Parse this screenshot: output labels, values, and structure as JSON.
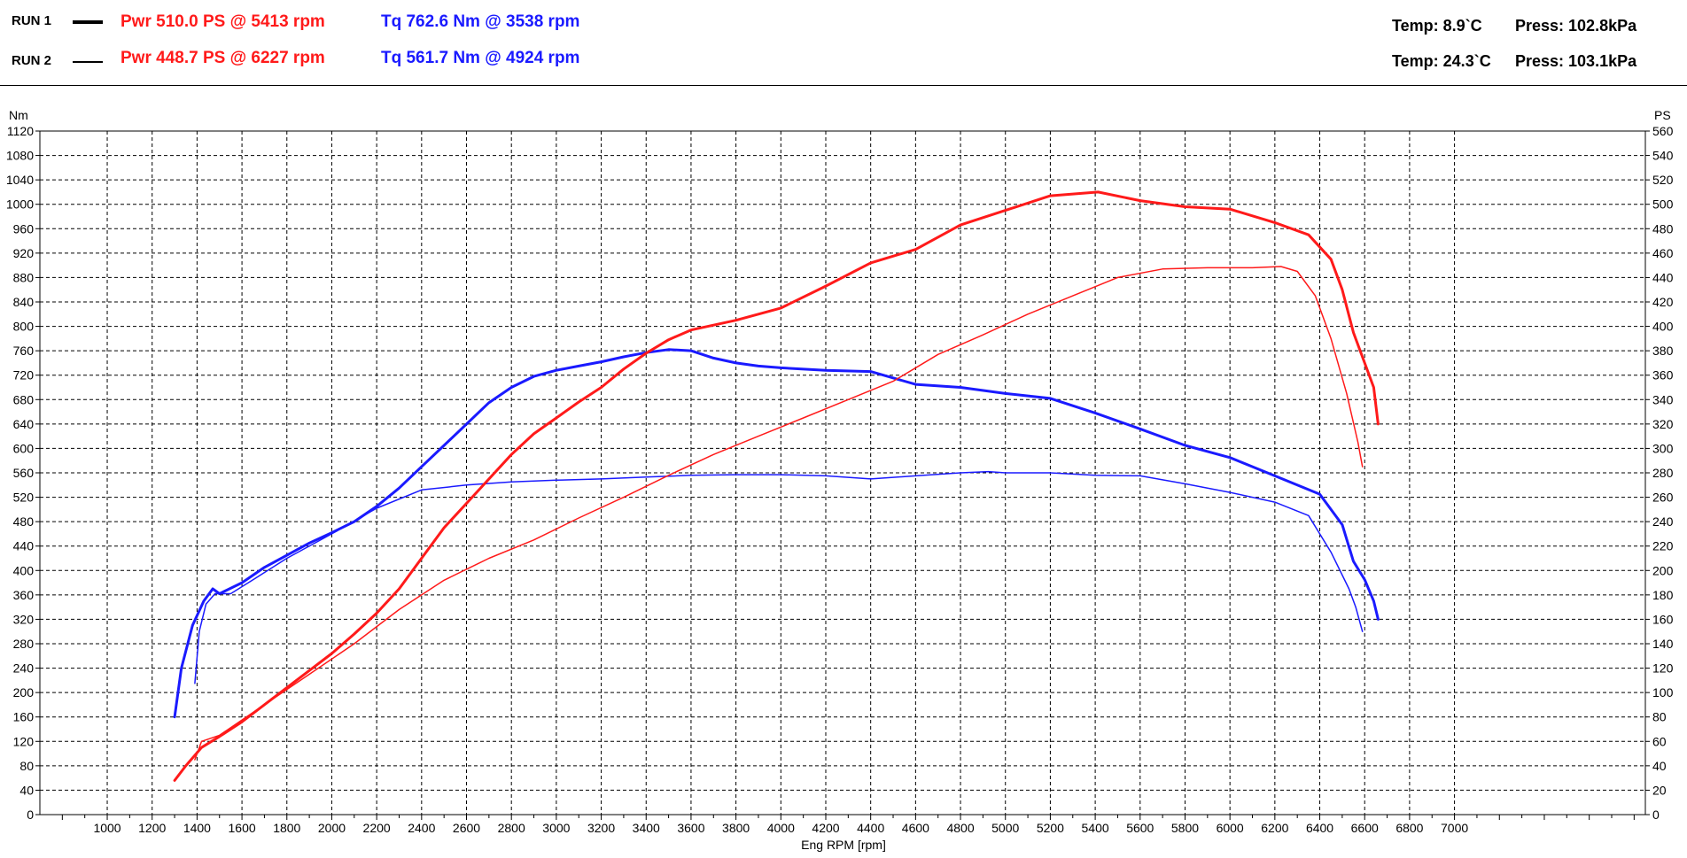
{
  "header": {
    "runs": [
      {
        "label": "RUN 1",
        "pwr": "Pwr  510.0 PS @ 5413 rpm",
        "tq": "Tq 762.6 Nm @ 3538 rpm",
        "temp": "Temp: 8.9`C",
        "press": "Press: 102.8kPa"
      },
      {
        "label": "RUN 2",
        "pwr": "Pwr  448.7 PS @ 6227 rpm",
        "tq": "Tq 561.7 Nm @ 4924 rpm",
        "temp": "Temp: 24.3`C",
        "press": "Press: 103.1kPa"
      }
    ]
  },
  "colors": {
    "power": "#ff1a1a",
    "torque": "#1a1aff",
    "grid": "#000000"
  },
  "chart_data": {
    "type": "line",
    "xlabel": "Eng RPM [rpm]",
    "ylabel_left": "Nm",
    "ylabel_right": "PS",
    "xlim": [
      700,
      7850
    ],
    "ylim_left": [
      0,
      1120
    ],
    "ylim_right": [
      0,
      560
    ],
    "x_ticks": [
      1000,
      1200,
      1400,
      1600,
      1800,
      2000,
      2200,
      2400,
      2600,
      2800,
      3000,
      3200,
      3400,
      3600,
      3800,
      4000,
      4200,
      4400,
      4600,
      4800,
      5000,
      5200,
      5400,
      5600,
      5800,
      6000,
      6200,
      6400,
      6600,
      6800,
      7000
    ],
    "y_left_ticks": [
      0,
      40,
      80,
      120,
      160,
      200,
      240,
      280,
      320,
      360,
      400,
      440,
      480,
      520,
      560,
      600,
      640,
      680,
      720,
      760,
      800,
      840,
      880,
      920,
      960,
      1000,
      1040,
      1080,
      1120
    ],
    "y_right_ticks": [
      0,
      20,
      40,
      60,
      80,
      100,
      120,
      140,
      160,
      180,
      200,
      220,
      240,
      260,
      280,
      300,
      320,
      340,
      360,
      380,
      400,
      420,
      440,
      460,
      480,
      500,
      520,
      540,
      560
    ],
    "grid": true,
    "series": [
      {
        "name": "RUN 1",
        "quantity": "torque",
        "unit": "Nm",
        "axis": "left",
        "color": "#1a1aff",
        "width": 3,
        "points": [
          [
            1300,
            160
          ],
          [
            1330,
            240
          ],
          [
            1380,
            310
          ],
          [
            1430,
            350
          ],
          [
            1470,
            370
          ],
          [
            1500,
            362
          ],
          [
            1600,
            380
          ],
          [
            1700,
            405
          ],
          [
            1800,
            425
          ],
          [
            1900,
            445
          ],
          [
            2000,
            462
          ],
          [
            2100,
            480
          ],
          [
            2200,
            505
          ],
          [
            2300,
            535
          ],
          [
            2400,
            570
          ],
          [
            2500,
            605
          ],
          [
            2600,
            640
          ],
          [
            2700,
            675
          ],
          [
            2800,
            700
          ],
          [
            2900,
            718
          ],
          [
            3000,
            728
          ],
          [
            3100,
            735
          ],
          [
            3200,
            742
          ],
          [
            3300,
            750
          ],
          [
            3400,
            757
          ],
          [
            3500,
            762
          ],
          [
            3600,
            760
          ],
          [
            3700,
            748
          ],
          [
            3800,
            740
          ],
          [
            3900,
            735
          ],
          [
            4000,
            732
          ],
          [
            4200,
            728
          ],
          [
            4400,
            726
          ],
          [
            4600,
            705
          ],
          [
            4800,
            700
          ],
          [
            5000,
            690
          ],
          [
            5200,
            682
          ],
          [
            5400,
            658
          ],
          [
            5600,
            632
          ],
          [
            5800,
            605
          ],
          [
            6000,
            585
          ],
          [
            6200,
            555
          ],
          [
            6400,
            525
          ],
          [
            6500,
            475
          ],
          [
            6550,
            415
          ],
          [
            6600,
            385
          ],
          [
            6640,
            350
          ],
          [
            6660,
            320
          ]
        ]
      },
      {
        "name": "RUN 2",
        "quantity": "torque",
        "unit": "Nm",
        "axis": "left",
        "color": "#1a1aff",
        "width": 1.5,
        "points": [
          [
            1390,
            215
          ],
          [
            1410,
            300
          ],
          [
            1440,
            345
          ],
          [
            1480,
            362
          ],
          [
            1550,
            362
          ],
          [
            1650,
            385
          ],
          [
            1800,
            420
          ],
          [
            2000,
            460
          ],
          [
            2200,
            502
          ],
          [
            2400,
            532
          ],
          [
            2600,
            540
          ],
          [
            2800,
            545
          ],
          [
            3000,
            548
          ],
          [
            3200,
            550
          ],
          [
            3400,
            553
          ],
          [
            3600,
            556
          ],
          [
            3800,
            557
          ],
          [
            4000,
            557
          ],
          [
            4200,
            555
          ],
          [
            4400,
            550
          ],
          [
            4600,
            555
          ],
          [
            4800,
            560
          ],
          [
            4924,
            562
          ],
          [
            5000,
            560
          ],
          [
            5200,
            560
          ],
          [
            5400,
            556
          ],
          [
            5600,
            555
          ],
          [
            5800,
            542
          ],
          [
            6000,
            528
          ],
          [
            6200,
            512
          ],
          [
            6350,
            490
          ],
          [
            6450,
            430
          ],
          [
            6530,
            370
          ],
          [
            6560,
            340
          ],
          [
            6590,
            300
          ]
        ]
      },
      {
        "name": "RUN 1",
        "quantity": "power",
        "unit": "PS",
        "axis": "right",
        "color": "#ff1a1a",
        "width": 3,
        "points": [
          [
            1300,
            28
          ],
          [
            1350,
            40
          ],
          [
            1420,
            55
          ],
          [
            1500,
            64
          ],
          [
            1600,
            76
          ],
          [
            1700,
            90
          ],
          [
            1800,
            104
          ],
          [
            1900,
            118
          ],
          [
            2000,
            132
          ],
          [
            2100,
            148
          ],
          [
            2200,
            165
          ],
          [
            2300,
            185
          ],
          [
            2400,
            210
          ],
          [
            2500,
            235
          ],
          [
            2600,
            255
          ],
          [
            2700,
            275
          ],
          [
            2800,
            295
          ],
          [
            2900,
            312
          ],
          [
            3000,
            325
          ],
          [
            3100,
            338
          ],
          [
            3200,
            350
          ],
          [
            3300,
            365
          ],
          [
            3400,
            378
          ],
          [
            3500,
            389
          ],
          [
            3600,
            397
          ],
          [
            3800,
            405
          ],
          [
            4000,
            415
          ],
          [
            4200,
            433
          ],
          [
            4400,
            452
          ],
          [
            4600,
            463
          ],
          [
            4800,
            483
          ],
          [
            5000,
            495
          ],
          [
            5200,
            507
          ],
          [
            5413,
            510
          ],
          [
            5600,
            503
          ],
          [
            5800,
            498
          ],
          [
            6000,
            496
          ],
          [
            6200,
            485
          ],
          [
            6350,
            475
          ],
          [
            6450,
            455
          ],
          [
            6500,
            430
          ],
          [
            6550,
            395
          ],
          [
            6600,
            370
          ],
          [
            6640,
            350
          ],
          [
            6660,
            320
          ]
        ]
      },
      {
        "name": "RUN 2",
        "quantity": "power",
        "unit": "PS",
        "axis": "right",
        "color": "#ff1a1a",
        "width": 1.5,
        "points": [
          [
            1390,
            45
          ],
          [
            1420,
            60
          ],
          [
            1500,
            65
          ],
          [
            1700,
            90
          ],
          [
            1900,
            115
          ],
          [
            2100,
            140
          ],
          [
            2300,
            168
          ],
          [
            2500,
            192
          ],
          [
            2700,
            210
          ],
          [
            2900,
            225
          ],
          [
            3100,
            243
          ],
          [
            3300,
            260
          ],
          [
            3500,
            278
          ],
          [
            3700,
            295
          ],
          [
            3900,
            310
          ],
          [
            4100,
            325
          ],
          [
            4300,
            340
          ],
          [
            4500,
            355
          ],
          [
            4700,
            377
          ],
          [
            4900,
            393
          ],
          [
            5100,
            410
          ],
          [
            5300,
            425
          ],
          [
            5500,
            440
          ],
          [
            5700,
            447
          ],
          [
            5900,
            448
          ],
          [
            6100,
            448
          ],
          [
            6227,
            449
          ],
          [
            6300,
            445
          ],
          [
            6380,
            425
          ],
          [
            6450,
            390
          ],
          [
            6520,
            345
          ],
          [
            6570,
            305
          ],
          [
            6590,
            285
          ]
        ]
      }
    ]
  }
}
